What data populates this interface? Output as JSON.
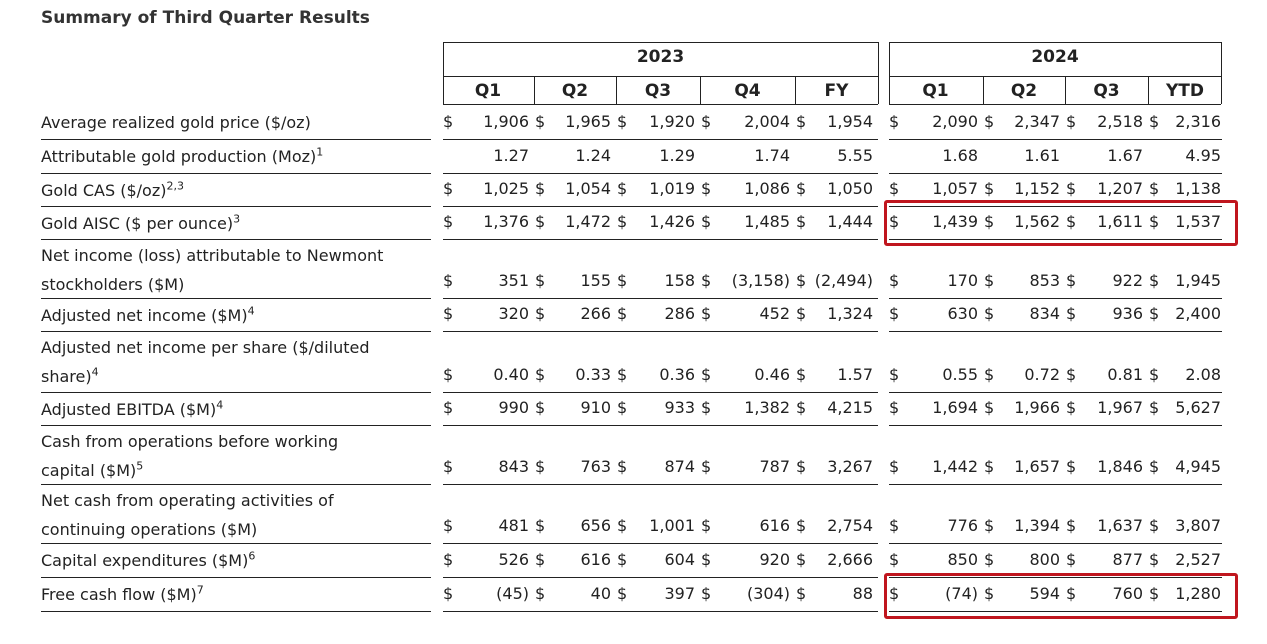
{
  "title": "Summary of Third Quarter Results",
  "years": [
    "2023",
    "2024"
  ],
  "columns": [
    "Q1",
    "Q2",
    "Q3",
    "Q4",
    "FY",
    "Q1",
    "Q2",
    "Q3",
    "YTD"
  ],
  "rows": [
    {
      "label": [
        "Average realized gold price ($/oz)"
      ],
      "sup": "",
      "dollar": [
        1,
        1,
        1,
        1,
        1,
        1,
        1,
        1,
        1
      ],
      "values": [
        "1,906",
        "1,965",
        "1,920",
        "2,004",
        "1,954",
        "2,090",
        "2,347",
        "2,518",
        "2,316"
      ]
    },
    {
      "label": [
        "Attributable gold production (Moz)"
      ],
      "sup": "1",
      "dollar": [
        0,
        0,
        0,
        0,
        0,
        0,
        0,
        0,
        0
      ],
      "values": [
        "1.27",
        "1.24",
        "1.29",
        "1.74",
        "5.55",
        "1.68",
        "1.61",
        "1.67",
        "4.95"
      ]
    },
    {
      "label": [
        "Gold CAS ($/oz)"
      ],
      "sup": "2,3",
      "dollar": [
        1,
        1,
        1,
        1,
        1,
        1,
        1,
        1,
        1
      ],
      "values": [
        "1,025",
        "1,054",
        "1,019",
        "1,086",
        "1,050",
        "1,057",
        "1,152",
        "1,207",
        "1,138"
      ]
    },
    {
      "label": [
        "Gold AISC ($ per ounce)"
      ],
      "sup": "3",
      "dollar": [
        1,
        1,
        1,
        1,
        1,
        1,
        1,
        1,
        1
      ],
      "values": [
        "1,376",
        "1,472",
        "1,426",
        "1,485",
        "1,444",
        "1,439",
        "1,562",
        "1,611",
        "1,537"
      ]
    },
    {
      "label": [
        "Net income (loss) attributable to Newmont",
        "stockholders ($M)"
      ],
      "sup": "",
      "dollar": [
        1,
        1,
        1,
        1,
        1,
        1,
        1,
        1,
        1
      ],
      "values": [
        "351",
        "155",
        "158",
        "(3,158)",
        "(2,494)",
        "170",
        "853",
        "922",
        "1,945"
      ]
    },
    {
      "label": [
        "Adjusted net income ($M)"
      ],
      "sup": "4",
      "dollar": [
        1,
        1,
        1,
        1,
        1,
        1,
        1,
        1,
        1
      ],
      "values": [
        "320",
        "266",
        "286",
        "452",
        "1,324",
        "630",
        "834",
        "936",
        "2,400"
      ]
    },
    {
      "label": [
        "Adjusted net income per share ($/diluted",
        "share)"
      ],
      "sup": "4",
      "dollar": [
        1,
        1,
        1,
        1,
        1,
        1,
        1,
        1,
        1
      ],
      "values": [
        "0.40",
        "0.33",
        "0.36",
        "0.46",
        "1.57",
        "0.55",
        "0.72",
        "0.81",
        "2.08"
      ]
    },
    {
      "label": [
        "Adjusted EBITDA ($M)"
      ],
      "sup": "4",
      "dollar": [
        1,
        1,
        1,
        1,
        1,
        1,
        1,
        1,
        1
      ],
      "values": [
        "990",
        "910",
        "933",
        "1,382",
        "4,215",
        "1,694",
        "1,966",
        "1,967",
        "5,627"
      ]
    },
    {
      "label": [
        "Cash from operations before working",
        "capital ($M)"
      ],
      "sup": "5",
      "dollar": [
        1,
        1,
        1,
        1,
        1,
        1,
        1,
        1,
        1
      ],
      "values": [
        "843",
        "763",
        "874",
        "787",
        "3,267",
        "1,442",
        "1,657",
        "1,846",
        "4,945"
      ]
    },
    {
      "label": [
        "Net cash from operating activities of",
        "continuing operations ($M)"
      ],
      "sup": "",
      "dollar": [
        1,
        1,
        1,
        1,
        1,
        1,
        1,
        1,
        1
      ],
      "values": [
        "481",
        "656",
        "1,001",
        "616",
        "2,754",
        "776",
        "1,394",
        "1,637",
        "3,807"
      ]
    },
    {
      "label": [
        "Capital expenditures ($M)"
      ],
      "sup": "6",
      "dollar": [
        1,
        1,
        1,
        1,
        1,
        1,
        1,
        1,
        1
      ],
      "values": [
        "526",
        "616",
        "604",
        "920",
        "2,666",
        "850",
        "800",
        "877",
        "2,527"
      ]
    },
    {
      "label": [
        "Free cash flow ($M)"
      ],
      "sup": "7",
      "dollar": [
        1,
        1,
        1,
        1,
        1,
        1,
        1,
        1,
        1
      ],
      "values": [
        "(45)",
        "40",
        "397",
        "(304)",
        "88",
        "(74)",
        "594",
        "760",
        "1,280"
      ]
    }
  ],
  "dollar_sign": "$",
  "highlight_color": "#c0161e"
}
